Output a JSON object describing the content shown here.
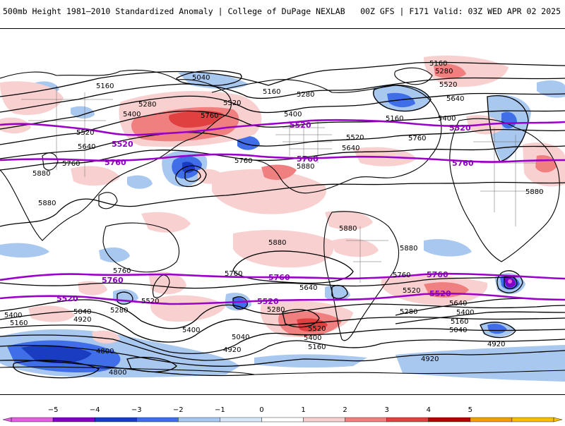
{
  "header": {
    "title": "500mb Height 1981–2010 Standardized Anomaly | College of DuPage NEXLAB",
    "run_info": "00Z GFS | F171 Valid: 03Z WED APR 02 2025"
  },
  "contour_labels": {
    "c5040": "5040",
    "c5160": "5160",
    "c5280": "5280",
    "c5400": "5400",
    "c5520": "5520",
    "c5640": "5640",
    "c5760": "5760",
    "c5880": "5880",
    "c4920": "4920",
    "c4800": "4800"
  },
  "colorbar": {
    "ticks": [
      "−5",
      "−4",
      "−3",
      "−2",
      "−1",
      "0",
      "1",
      "2",
      "3",
      "4",
      "5"
    ],
    "colors": [
      "#e060e0",
      "#8000c8",
      "#1a3cc0",
      "#3f6ee8",
      "#a8c8f0",
      "#d8e8f8",
      "#ffffff",
      "#f8d0d0",
      "#f08080",
      "#e04040",
      "#b80000",
      "#f0a000",
      "#f8c000"
    ]
  },
  "colors": {
    "highlight_contour": "#9a00c8",
    "contour": "#000000",
    "coastline": "#000000",
    "border": "#666666"
  }
}
